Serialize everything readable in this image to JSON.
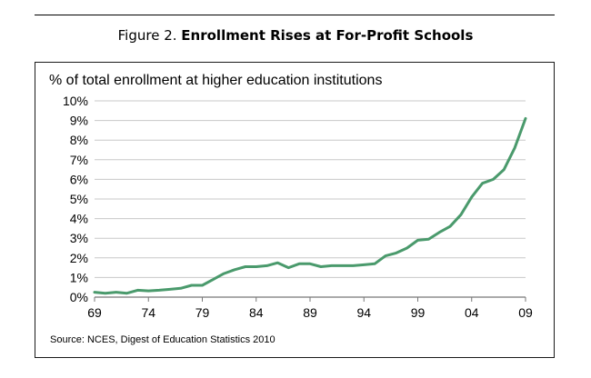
{
  "figure": {
    "label": "Figure 2.",
    "title": "Enrollment Rises at For-Profit Schools"
  },
  "chart_data": {
    "type": "line",
    "title": "% of total enrollment at higher education institutions",
    "source": "Source: NCES, Digest of Education Statistics 2010",
    "xlabel": "",
    "ylabel": "",
    "ylim": [
      0,
      10
    ],
    "y_tick_labels": [
      "0%",
      "1%",
      "2%",
      "3%",
      "4%",
      "5%",
      "6%",
      "7%",
      "8%",
      "9%",
      "10%"
    ],
    "x_tick_labels": [
      "69",
      "74",
      "79",
      "84",
      "89",
      "94",
      "99",
      "04",
      "09"
    ],
    "grid": true,
    "line_color": "#4a9a6c",
    "series": [
      {
        "x": [
          1969,
          1970,
          1971,
          1972,
          1973,
          1974,
          1975,
          1976,
          1977,
          1978,
          1979,
          1980,
          1981,
          1982,
          1983,
          1984,
          1985,
          1986,
          1987,
          1988,
          1989,
          1990,
          1991,
          1992,
          1993,
          1994,
          1995,
          1996,
          1997,
          1998,
          1999,
          2000,
          2001,
          2002,
          2003,
          2004,
          2005,
          2006,
          2007,
          2008,
          2009
        ],
        "values": [
          0.25,
          0.2,
          0.25,
          0.2,
          0.35,
          0.32,
          0.35,
          0.4,
          0.45,
          0.6,
          0.6,
          0.9,
          1.2,
          1.4,
          1.55,
          1.55,
          1.6,
          1.75,
          1.5,
          1.7,
          1.7,
          1.55,
          1.6,
          1.6,
          1.6,
          1.65,
          1.7,
          2.1,
          2.25,
          2.5,
          2.9,
          2.95,
          3.3,
          3.6,
          4.2,
          5.1,
          5.8,
          6.0,
          6.5,
          7.6,
          9.1
        ]
      }
    ]
  }
}
